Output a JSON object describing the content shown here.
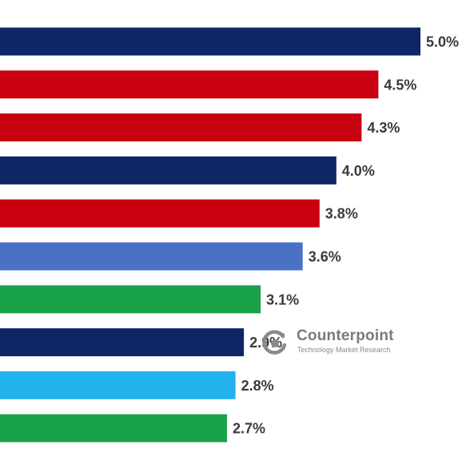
{
  "chart_data": {
    "type": "bar",
    "orientation": "horizontal",
    "xlim": [
      0,
      5.0
    ],
    "grid": false,
    "legend": "none",
    "bars": [
      {
        "value": 5.0,
        "label": "5.0%",
        "color": "#0e2566"
      },
      {
        "value": 4.5,
        "label": "4.5%",
        "color": "#c8000f"
      },
      {
        "value": 4.3,
        "label": "4.3%",
        "color": "#c8000f"
      },
      {
        "value": 4.0,
        "label": "4.0%",
        "color": "#0e2566"
      },
      {
        "value": 3.8,
        "label": "3.8%",
        "color": "#c8000f"
      },
      {
        "value": 3.6,
        "label": "3.6%",
        "color": "#4a72c4"
      },
      {
        "value": 3.1,
        "label": "3.1%",
        "color": "#1aa24b"
      },
      {
        "value": 2.9,
        "label": "2.9%",
        "color": "#0e2566"
      },
      {
        "value": 2.8,
        "label": "2.8%",
        "color": "#22b2ec"
      },
      {
        "value": 2.7,
        "label": "2.7%",
        "color": "#1aa24b"
      }
    ]
  },
  "watermark": {
    "name": "Counterpoint",
    "tagline": "Technology Market Research",
    "logo_icon": "counterpoint-logo-icon"
  }
}
